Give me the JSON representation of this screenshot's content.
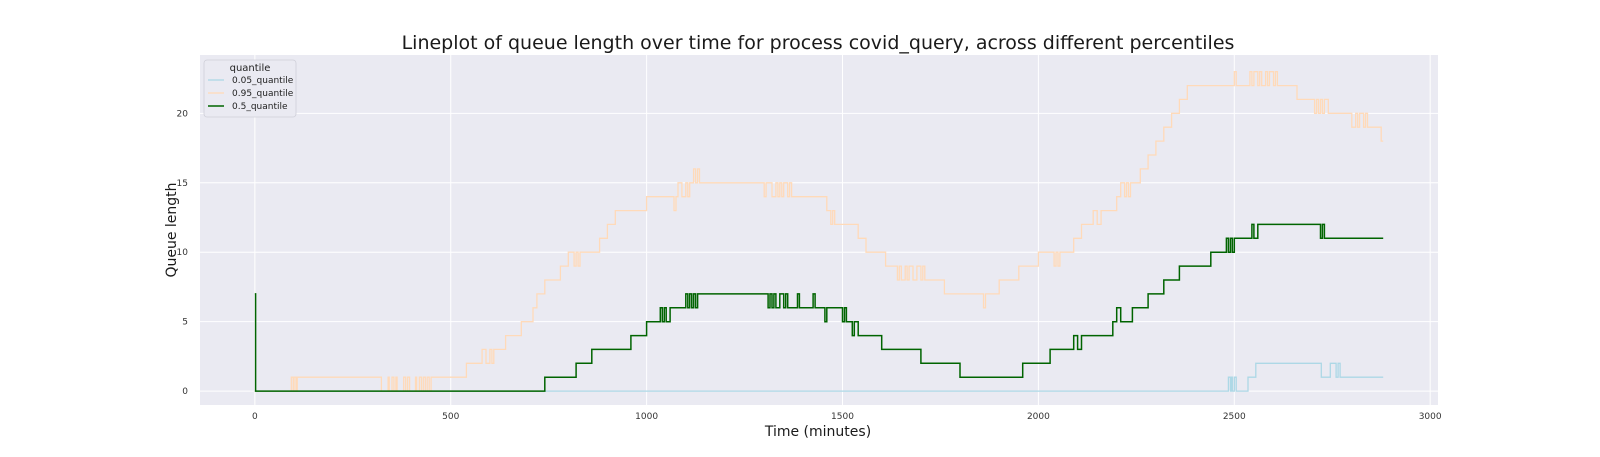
{
  "chart_data": {
    "type": "line",
    "title": "Lineplot of queue length over time for process covid_query, across different percentiles",
    "xlabel": "Time (minutes)",
    "ylabel": "Queue length",
    "xlim": [
      -140,
      3020
    ],
    "ylim": [
      -1.0,
      24.2
    ],
    "xticks": [
      0,
      500,
      1000,
      1500,
      2000,
      2500,
      3000
    ],
    "yticks": [
      0,
      5,
      10,
      15,
      20
    ],
    "grid": true,
    "legend": {
      "title": "quantile",
      "placement": "top-left",
      "entries": [
        "0.05_quantile",
        "0.95_quantile",
        "0.5_quantile"
      ]
    },
    "series": [
      {
        "name": "0.05_quantile",
        "color": "#add8e6",
        "x": [
          0,
          0.5,
          2470,
          2485,
          2490,
          2492,
          2495,
          2500,
          2505,
          2510,
          2530,
          2535,
          2550,
          2555,
          2565,
          2575,
          2580,
          2590,
          2600,
          2610,
          2720,
          2722,
          2740,
          2745,
          2760,
          2765,
          2770,
          2775,
          2880
        ],
        "y": [
          0,
          0,
          0,
          1,
          0,
          1,
          0,
          1,
          0,
          0,
          0,
          1,
          1,
          2,
          2,
          2,
          2,
          2,
          2,
          2,
          2,
          1,
          1,
          2,
          1,
          2,
          1,
          1,
          1
        ]
      },
      {
        "name": "0.95_quantile",
        "color": "#ffdab9",
        "x": [
          0,
          0.5,
          90,
          93,
          98,
          100,
          105,
          108,
          320,
          323,
          340,
          343,
          350,
          355,
          360,
          363,
          380,
          385,
          390,
          395,
          410,
          413,
          420,
          425,
          430,
          435,
          440,
          445,
          450,
          460,
          540,
          580,
          590,
          600,
          605,
          610,
          615,
          640,
          680,
          700,
          710,
          720,
          730,
          740,
          760,
          780,
          800,
          815,
          820,
          825,
          830,
          840,
          880,
          900,
          920,
          950,
          1000,
          1060,
          1070,
          1075,
          1080,
          1090,
          1100,
          1105,
          1110,
          1120,
          1125,
          1130,
          1135,
          1140,
          1300,
          1305,
          1310,
          1320,
          1330,
          1335,
          1340,
          1345,
          1350,
          1360,
          1365,
          1370,
          1450,
          1460,
          1470,
          1475,
          1480,
          1490,
          1540,
          1560,
          1610,
          1640,
          1645,
          1650,
          1660,
          1665,
          1670,
          1680,
          1690,
          1700,
          1705,
          1710,
          1720,
          1730,
          1760,
          1800,
          1860,
          1865,
          1870,
          1875,
          1880,
          1900,
          1950,
          2000,
          2040,
          2045,
          2050,
          2055,
          2060,
          2090,
          2110,
          2140,
          2150,
          2160,
          2180,
          2200,
          2210,
          2220,
          2225,
          2230,
          2235,
          2240,
          2260,
          2280,
          2300,
          2320,
          2340,
          2360,
          2380,
          2400,
          2460,
          2500,
          2505,
          2510,
          2540,
          2545,
          2550,
          2560,
          2565,
          2570,
          2580,
          2585,
          2590,
          2600,
          2605,
          2610,
          2620,
          2660,
          2700,
          2705,
          2710,
          2715,
          2720,
          2725,
          2730,
          2740,
          2780,
          2800,
          2805,
          2810,
          2815,
          2820,
          2830,
          2835,
          2840,
          2870,
          2875,
          2880
        ],
        "y": [
          0,
          0,
          0,
          1,
          0,
          1,
          0,
          1,
          1,
          0,
          1,
          0,
          1,
          0,
          1,
          0,
          1,
          0,
          1,
          0,
          1,
          0,
          1,
          0,
          1,
          0,
          1,
          0,
          1,
          1,
          2,
          3,
          2,
          3,
          2,
          3,
          3,
          4,
          5,
          5,
          6,
          7,
          7,
          8,
          8,
          9,
          10,
          9,
          10,
          9,
          10,
          10,
          11,
          12,
          13,
          13,
          14,
          14,
          13,
          14,
          15,
          14,
          15,
          14,
          15,
          16,
          15,
          16,
          15,
          15,
          14,
          15,
          15,
          14,
          15,
          14,
          15,
          14,
          15,
          14,
          15,
          14,
          14,
          13,
          12,
          13,
          12,
          12,
          11,
          10,
          9,
          8,
          9,
          8,
          9,
          8,
          9,
          8,
          9,
          8,
          9,
          8,
          8,
          8,
          7,
          7,
          6,
          7,
          7,
          7,
          7,
          8,
          9,
          10,
          9,
          10,
          9,
          10,
          10,
          11,
          12,
          13,
          12,
          13,
          13,
          14,
          15,
          14,
          15,
          14,
          15,
          15,
          16,
          17,
          18,
          19,
          20,
          21,
          22,
          22,
          22,
          23,
          22,
          22,
          23,
          22,
          23,
          22,
          23,
          22,
          23,
          22,
          23,
          22,
          23,
          22,
          22,
          21,
          21,
          20,
          21,
          20,
          21,
          20,
          21,
          20,
          20,
          19,
          19,
          20,
          19,
          20,
          19,
          20,
          19,
          19,
          18,
          18
        ]
      },
      {
        "name": "0.5_quantile",
        "color": "#006400",
        "x": [
          0,
          1,
          2,
          740,
          780,
          820,
          860,
          900,
          960,
          1000,
          1030,
          1035,
          1040,
          1045,
          1050,
          1060,
          1080,
          1100,
          1105,
          1110,
          1115,
          1120,
          1125,
          1130,
          1140,
          1310,
          1315,
          1320,
          1325,
          1330,
          1335,
          1340,
          1350,
          1355,
          1360,
          1380,
          1385,
          1390,
          1400,
          1420,
          1425,
          1430,
          1440,
          1450,
          1455,
          1460,
          1490,
          1500,
          1505,
          1510,
          1520,
          1525,
          1530,
          1540,
          1600,
          1660,
          1700,
          1740,
          1760,
          1800,
          1940,
          1960,
          2000,
          2030,
          2060,
          2080,
          2090,
          2100,
          2110,
          2140,
          2190,
          2200,
          2210,
          2240,
          2250,
          2260,
          2280,
          2300,
          2320,
          2340,
          2350,
          2360,
          2380,
          2440,
          2460,
          2470,
          2480,
          2485,
          2490,
          2495,
          2500,
          2540,
          2545,
          2550,
          2560,
          2580,
          2600,
          2700,
          2720,
          2725,
          2730,
          2740,
          2750,
          2880
        ],
        "y": [
          7,
          7,
          0,
          1,
          1,
          2,
          3,
          3,
          4,
          5,
          5,
          6,
          5,
          6,
          5,
          6,
          6,
          7,
          6,
          7,
          6,
          7,
          6,
          7,
          7,
          6,
          7,
          6,
          7,
          6,
          6,
          7,
          6,
          7,
          6,
          6,
          7,
          6,
          6,
          6,
          7,
          6,
          6,
          6,
          5,
          6,
          6,
          5,
          6,
          5,
          5,
          4,
          5,
          4,
          3,
          3,
          2,
          2,
          2,
          1,
          1,
          2,
          2,
          3,
          3,
          3,
          4,
          3,
          4,
          4,
          5,
          6,
          5,
          6,
          6,
          6,
          7,
          7,
          8,
          8,
          8,
          9,
          9,
          10,
          10,
          10,
          11,
          10,
          11,
          10,
          11,
          11,
          12,
          11,
          12,
          12,
          12,
          12,
          11,
          12,
          11,
          11,
          11,
          11
        ]
      }
    ]
  }
}
